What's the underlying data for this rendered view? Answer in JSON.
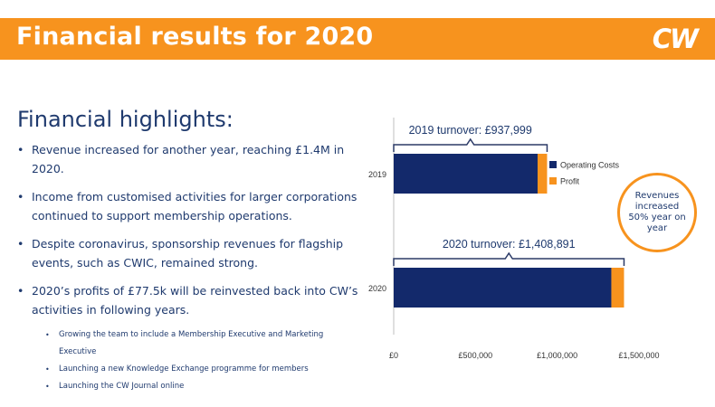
{
  "header": {
    "title": "Financial results for 2020",
    "logo": "CW",
    "bar_color": "#f7931e"
  },
  "highlights": {
    "title": "Financial highlights:",
    "bullets": [
      "Revenue increased for another year, reaching £1.4M in 2020.",
      "Income from customised activities for larger corporations continued to support membership operations.",
      "Despite coronavirus, sponsorship revenues for flagship events, such as CWIC, remained strong.",
      "2020’s profits of £77.5k will be reinvested back into CW’s activities in following years."
    ],
    "sub_bullets": [
      "Growing  the  team  to  include  a  Membership  Executive  and  Marketing  Executive",
      "Launching  a  new  Knowledge  Exchange  programme  for  members",
      "Launching  the  CW  Journal  online"
    ]
  },
  "callout": {
    "text": "Revenues increased 50% year on year"
  },
  "colors": {
    "operating": "#13296b",
    "profit": "#f7931e",
    "text": "#1f3a6e"
  },
  "chart_data": {
    "type": "bar",
    "orientation": "horizontal",
    "stacked": true,
    "categories": [
      "2019",
      "2020"
    ],
    "series": [
      {
        "name": "Operating Costs",
        "values": [
          880000,
          1331000
        ]
      },
      {
        "name": "Profit",
        "values": [
          58000,
          77500
        ]
      }
    ],
    "xlim": [
      0,
      1500000
    ],
    "xticks": [
      0,
      500000,
      1000000,
      1500000
    ],
    "xtick_labels": [
      "£0",
      "£500,000",
      "£1,000,000",
      "£1,500,000"
    ],
    "annotations": [
      "2019 turnover: £937,999",
      "2020 turnover: £1,408,891"
    ],
    "legend_position": "right",
    "grid": false
  }
}
